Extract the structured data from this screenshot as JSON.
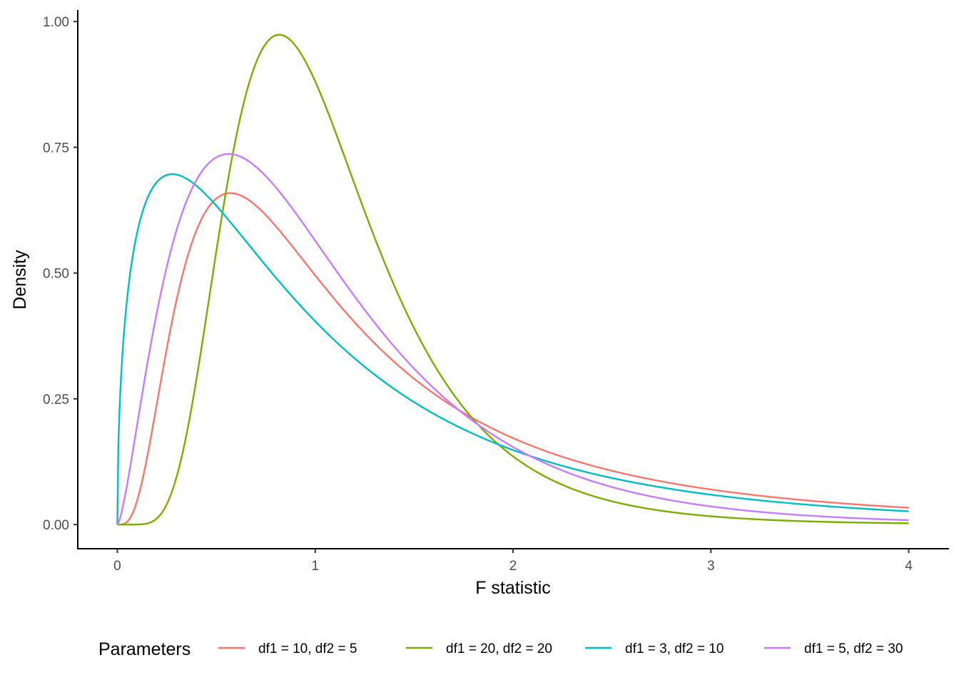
{
  "chart_data": {
    "type": "line",
    "title": "",
    "xlabel": "F statistic",
    "ylabel": "Density",
    "xlim": [
      -0.2,
      4.2
    ],
    "ylim": [
      -0.048,
      1.023
    ],
    "x_ticks": [
      {
        "value": 0,
        "label": "0"
      },
      {
        "value": 1,
        "label": "1"
      },
      {
        "value": 2,
        "label": "2"
      },
      {
        "value": 3,
        "label": "3"
      },
      {
        "value": 4,
        "label": "4"
      }
    ],
    "y_ticks": [
      {
        "value": 0.0,
        "label": "0.00"
      },
      {
        "value": 0.25,
        "label": "0.25"
      },
      {
        "value": 0.5,
        "label": "0.50"
      },
      {
        "value": 0.75,
        "label": "0.75"
      },
      {
        "value": 1.0,
        "label": "1.00"
      }
    ],
    "grid": false,
    "legend": {
      "title": "Parameters",
      "position": "bottom"
    },
    "x_range": [
      0,
      4
    ],
    "series": [
      {
        "name": "df1 = 10, df2 = 5",
        "df1": 10,
        "df2": 5,
        "color": "#F8766D"
      },
      {
        "name": "df1 = 20, df2 = 20",
        "df1": 20,
        "df2": 20,
        "color": "#7CAE00"
      },
      {
        "name": "df1 = 3, df2 = 10",
        "df1": 3,
        "df2": 10,
        "color": "#00BFC4"
      },
      {
        "name": "df1 = 5, df2 = 30",
        "df1": 5,
        "df2": 30,
        "color": "#C77CFF"
      }
    ]
  }
}
